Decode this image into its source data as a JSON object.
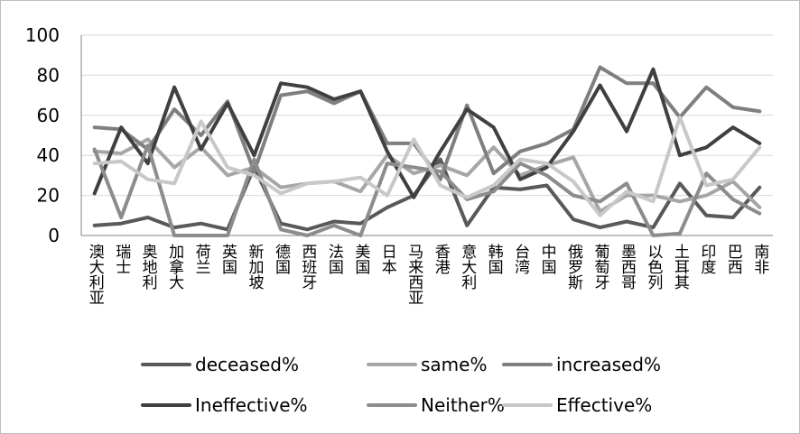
{
  "chart_data": {
    "type": "line",
    "categories": [
      "澳大利亚",
      "瑞士",
      "奥地利",
      "加拿大",
      "荷兰",
      "英国",
      "新加坡",
      "德国",
      "西班牙",
      "法国",
      "美国",
      "日本",
      "马来西亚",
      "香港",
      "意大利",
      "韩国",
      "台湾",
      "中国",
      "俄罗斯",
      "葡萄牙",
      "墨西哥",
      "以色列",
      "土耳其",
      "印度",
      "巴西",
      "南非"
    ],
    "ylim": [
      0,
      100
    ],
    "yticks": [
      0,
      20,
      40,
      60,
      80,
      100
    ],
    "grid": true,
    "legend_position": "bottom",
    "series": [
      {
        "name": "deceased%",
        "color": "#595959",
        "values": [
          5,
          6,
          9,
          4,
          6,
          3,
          34,
          6,
          3,
          7,
          6,
          14,
          20,
          38,
          5,
          24,
          23,
          25,
          8,
          4,
          7,
          4,
          26,
          10,
          9,
          24
        ]
      },
      {
        "name": "same%",
        "color": "#a6a6a6",
        "values": [
          42,
          41,
          48,
          34,
          44,
          30,
          34,
          24,
          26,
          27,
          22,
          40,
          31,
          35,
          30,
          44,
          30,
          35,
          39,
          12,
          20,
          20,
          17,
          20,
          27,
          14
        ]
      },
      {
        "name": "increased%",
        "color": "#7f7f7f",
        "values": [
          54,
          53,
          43,
          63,
          50,
          67,
          32,
          70,
          72,
          66,
          72,
          46,
          46,
          28,
          65,
          31,
          42,
          46,
          53,
          84,
          76,
          76,
          59,
          74,
          64,
          62
        ]
      },
      {
        "name": "Ineffective%",
        "color": "#404040",
        "values": [
          21,
          54,
          36,
          74,
          43,
          66,
          40,
          76,
          74,
          68,
          72,
          42,
          19,
          42,
          63,
          54,
          28,
          34,
          52,
          75,
          52,
          83,
          40,
          44,
          54,
          46
        ]
      },
      {
        "name": "Neither%",
        "color": "#8c8c8c",
        "values": [
          43,
          9,
          45,
          0,
          0,
          0,
          38,
          3,
          0,
          5,
          0,
          36,
          34,
          32,
          18,
          22,
          36,
          30,
          20,
          17,
          26,
          0,
          1,
          31,
          18,
          11
        ]
      },
      {
        "name": "Effective%",
        "color": "#c8c8c8",
        "values": [
          36,
          37,
          28,
          26,
          57,
          34,
          30,
          21,
          26,
          27,
          29,
          20,
          48,
          25,
          19,
          25,
          38,
          36,
          27,
          10,
          22,
          17,
          59,
          25,
          28,
          44
        ]
      }
    ]
  }
}
